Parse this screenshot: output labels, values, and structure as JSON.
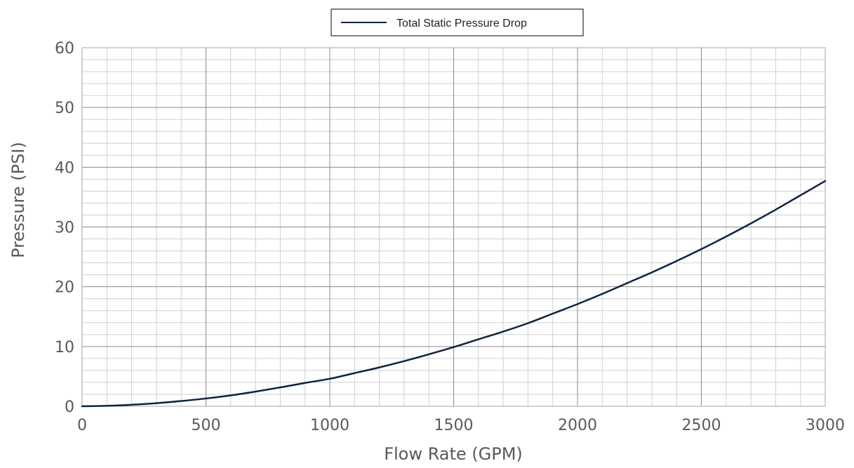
{
  "chart_data": {
    "type": "line",
    "xlabel": "Flow Rate (GPM)",
    "ylabel": "Pressure (PSI)",
    "xlim": [
      0,
      3000
    ],
    "ylim": [
      0,
      60
    ],
    "x_ticks": [
      "0",
      "500",
      "1000",
      "1500",
      "2000",
      "2500",
      "3000"
    ],
    "y_ticks": [
      "0",
      "10",
      "20",
      "30",
      "40",
      "50",
      "60"
    ],
    "x_major_step": 500,
    "x_minor_step": 100,
    "y_major_step": 10,
    "y_minor_step": 2,
    "grid": true,
    "legend_position": "top-center",
    "series": [
      {
        "name": "Total Static Pressure Drop",
        "color": "#0f2340",
        "x": [
          0,
          100,
          200,
          300,
          400,
          500,
          600,
          700,
          800,
          900,
          1000,
          1100,
          1200,
          1300,
          1400,
          1500,
          1600,
          1700,
          1800,
          1900,
          2000,
          2100,
          2200,
          2300,
          2400,
          2500,
          2600,
          2700,
          2800,
          2900,
          3000
        ],
        "y": [
          0,
          0.07,
          0.25,
          0.52,
          0.88,
          1.3,
          1.82,
          2.45,
          3.15,
          3.9,
          4.6,
          5.55,
          6.5,
          7.55,
          8.7,
          9.9,
          11.2,
          12.5,
          13.9,
          15.5,
          17.1,
          18.8,
          20.6,
          22.4,
          24.3,
          26.3,
          28.4,
          30.6,
          32.9,
          35.3,
          37.7
        ]
      }
    ]
  }
}
